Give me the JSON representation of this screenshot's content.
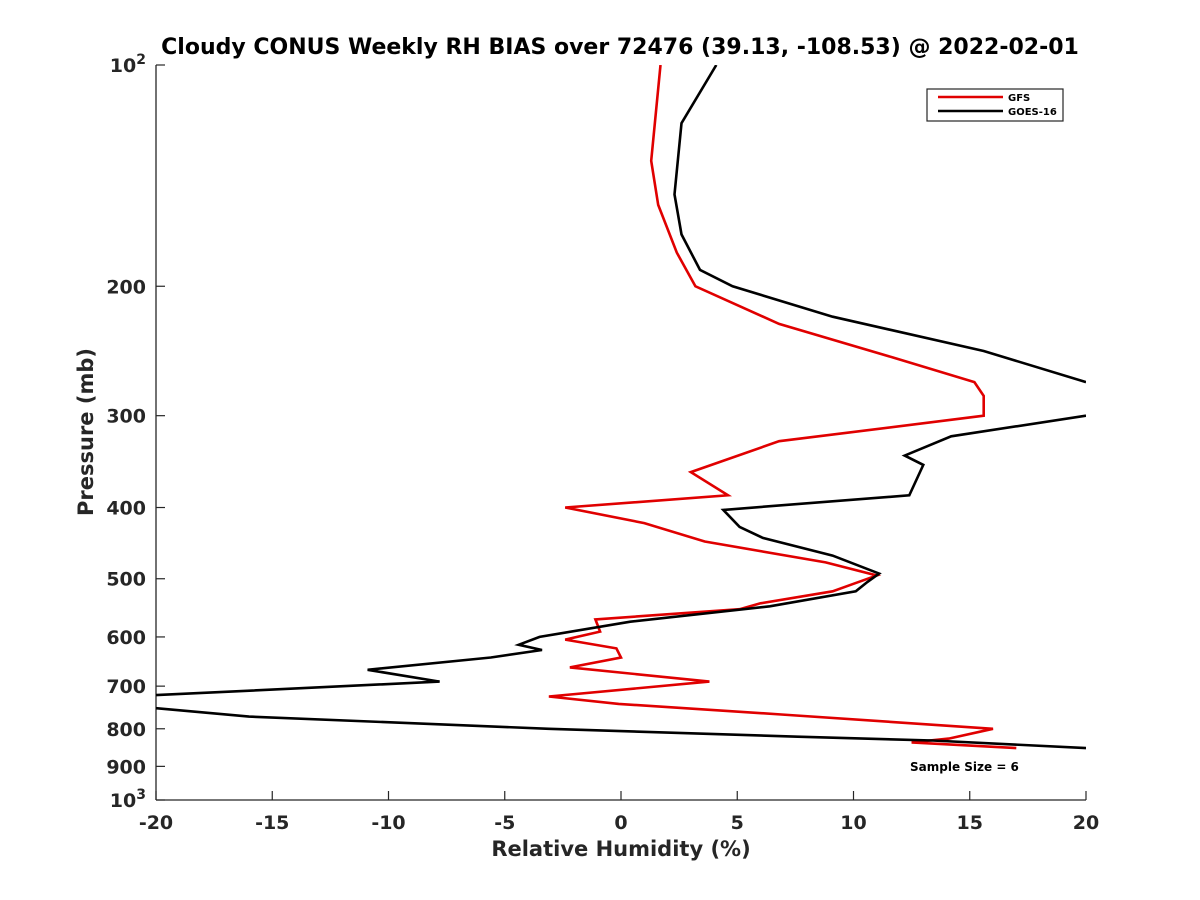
{
  "chart_data": {
    "type": "line",
    "title": "Cloudy CONUS Weekly RH BIAS over 72476 (39.13, -108.53) @ 2022-02-01",
    "xlabel": "Relative Humidity (%)",
    "ylabel": "Pressure (mb)",
    "xlim": [
      -20,
      20
    ],
    "ylim": [
      100,
      1000
    ],
    "y_scale": "log",
    "y_reversed": true,
    "grid": false,
    "legend_position": "top-right",
    "x_ticks": [
      "-20",
      "-15",
      "-10",
      "-5",
      "0",
      "5",
      "10",
      "15",
      "20"
    ],
    "y_ticks": [
      {
        "value": 100,
        "base": "10",
        "exp": "2"
      },
      {
        "value": 200,
        "label": "200"
      },
      {
        "value": 300,
        "label": "300"
      },
      {
        "value": 400,
        "label": "400"
      },
      {
        "value": 500,
        "label": "500"
      },
      {
        "value": 600,
        "label": "600"
      },
      {
        "value": 700,
        "label": "700"
      },
      {
        "value": 800,
        "label": "800"
      },
      {
        "value": 900,
        "label": "900"
      },
      {
        "value": 1000,
        "base": "10",
        "exp": "3"
      }
    ],
    "series": [
      {
        "name": "GFS",
        "color": "#e00000",
        "points": [
          [
            1.7,
            100
          ],
          [
            1.3,
            135
          ],
          [
            1.6,
            155
          ],
          [
            2.4,
            180
          ],
          [
            3.2,
            200
          ],
          [
            6.8,
            225
          ],
          [
            11.7,
            250
          ],
          [
            15.2,
            270
          ],
          [
            15.6,
            282
          ],
          [
            15.6,
            300
          ],
          [
            6.8,
            325
          ],
          [
            3.0,
            358
          ],
          [
            4.6,
            385
          ],
          [
            -2.4,
            400
          ],
          [
            1.0,
            420
          ],
          [
            3.6,
            445
          ],
          [
            8.8,
            475
          ],
          [
            11.0,
            495
          ],
          [
            10.0,
            508
          ],
          [
            9.1,
            520
          ],
          [
            6.0,
            540
          ],
          [
            5.1,
            550
          ],
          [
            -1.1,
            568
          ],
          [
            -0.9,
            590
          ],
          [
            -2.4,
            605
          ],
          [
            -0.2,
            622
          ],
          [
            0.0,
            640
          ],
          [
            -2.2,
            660
          ],
          [
            3.8,
            690
          ],
          [
            -3.1,
            723
          ],
          [
            -0.1,
            740
          ],
          [
            6.9,
            765
          ],
          [
            16.0,
            800
          ],
          [
            14.1,
            825
          ],
          [
            12.5,
            835
          ],
          [
            17.0,
            850
          ]
        ]
      },
      {
        "name": "GOES-16",
        "color": "#000000",
        "points": [
          [
            4.1,
            100
          ],
          [
            2.6,
            120
          ],
          [
            2.3,
            150
          ],
          [
            2.6,
            170
          ],
          [
            3.4,
            190
          ],
          [
            4.8,
            200
          ],
          [
            9.1,
            220
          ],
          [
            15.6,
            245
          ],
          [
            20.0,
            270
          ],
          [
            null,
            285
          ],
          [
            20.0,
            300
          ],
          [
            14.2,
            320
          ],
          [
            12.2,
            340
          ],
          [
            13.0,
            350
          ],
          [
            12.4,
            385
          ],
          [
            4.4,
            403
          ],
          [
            5.1,
            425
          ],
          [
            6.1,
            440
          ],
          [
            9.1,
            465
          ],
          [
            11.1,
            492
          ],
          [
            10.6,
            505
          ],
          [
            10.1,
            520
          ],
          [
            6.4,
            545
          ],
          [
            0.4,
            572
          ],
          [
            -3.5,
            600
          ],
          [
            -4.4,
            615
          ],
          [
            -3.4,
            625
          ],
          [
            -5.6,
            640
          ],
          [
            -10.9,
            665
          ],
          [
            -7.8,
            690
          ],
          [
            -20.0,
            720
          ],
          [
            null,
            735
          ],
          [
            -20.0,
            750
          ],
          [
            -16.0,
            770
          ],
          [
            -3.1,
            800
          ],
          [
            7.6,
            820
          ],
          [
            13.4,
            830
          ],
          [
            20.0,
            850
          ]
        ]
      }
    ],
    "legend": [
      "GFS",
      "GOES-16"
    ],
    "annotation": "Sample Size = 6"
  }
}
